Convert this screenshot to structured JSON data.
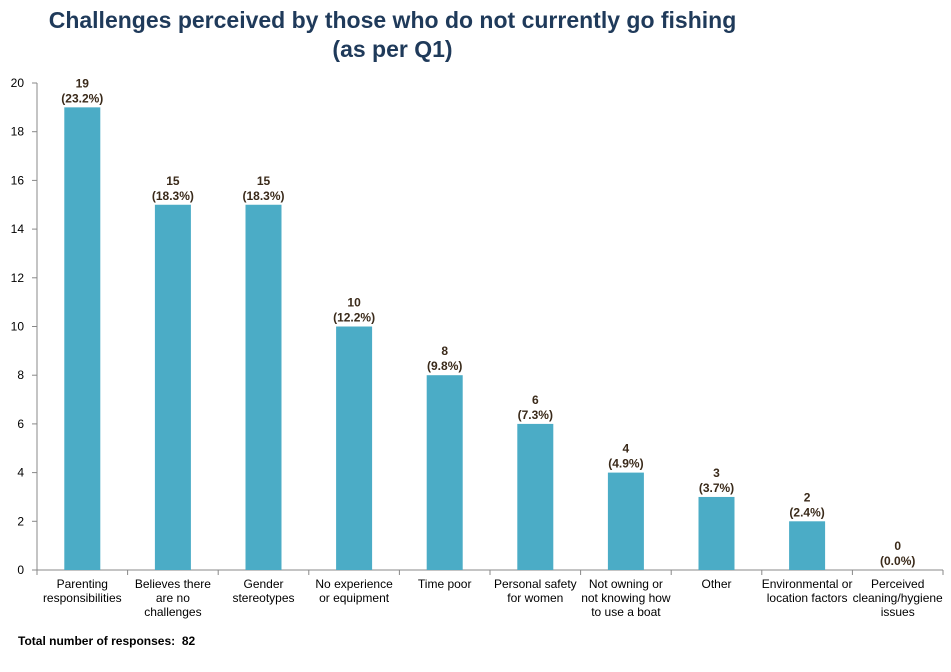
{
  "chart_data": {
    "type": "bar",
    "title_line1": "Challenges perceived by those who do not currently go fishing",
    "title_line2": "(as per Q1)",
    "categories": [
      [
        "Parenting",
        "responsibilities"
      ],
      [
        "Believes there",
        "are no",
        "challenges"
      ],
      [
        "Gender",
        "stereotypes"
      ],
      [
        "No experience",
        "or equipment"
      ],
      [
        "Time poor"
      ],
      [
        "Personal safety",
        "for women"
      ],
      [
        "Not owning or",
        "not knowing how",
        "to use a boat"
      ],
      [
        "Other"
      ],
      [
        "Environmental or",
        "location factors"
      ],
      [
        "Perceived",
        "cleaning/hygiene",
        "issues"
      ]
    ],
    "values": [
      19,
      15,
      15,
      10,
      8,
      6,
      4,
      3,
      2,
      0
    ],
    "percent_labels": [
      "(23.2%)",
      "(18.3%)",
      "(18.3%)",
      "(12.2%)",
      "(9.8%)",
      "(7.3%)",
      "(4.9%)",
      "(3.7%)",
      "(2.4%)",
      "(0.0%)"
    ],
    "ylim": [
      0,
      20
    ],
    "yticks": [
      0,
      2,
      4,
      6,
      8,
      10,
      12,
      14,
      16,
      18,
      20
    ],
    "xlabel": "",
    "ylabel": "",
    "bar_color": "#4bacc6",
    "grid": false,
    "legend": "none"
  },
  "footer": {
    "label": "Total number of responses:",
    "value": "82"
  }
}
